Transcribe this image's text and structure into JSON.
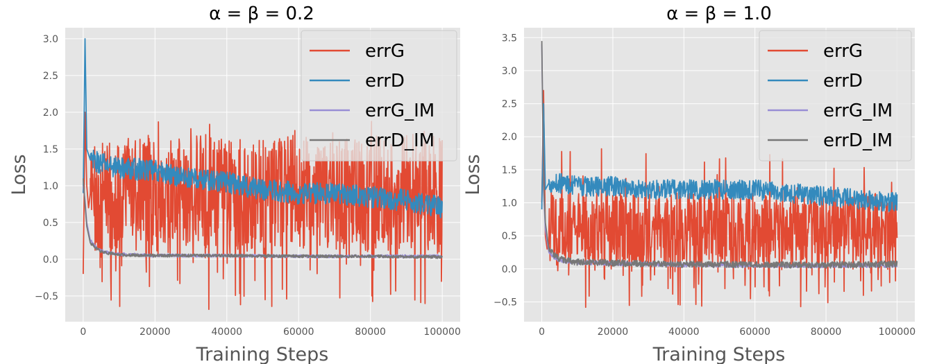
{
  "chart_data": [
    {
      "type": "line",
      "title": "α = β = 0.2",
      "xlabel": "Training Steps",
      "ylabel": "Loss",
      "xlim": [
        -5000,
        105000
      ],
      "ylim": [
        -0.85,
        3.15
      ],
      "xticks": [
        0,
        20000,
        40000,
        60000,
        80000,
        100000
      ],
      "yticks": [
        -0.5,
        0.0,
        0.5,
        1.0,
        1.5,
        2.0,
        2.5,
        3.0
      ],
      "ytick_labels": [
        "−0.5",
        "0.0",
        "0.5",
        "1.0",
        "1.5",
        "2.0",
        "2.5",
        "3.0"
      ],
      "grid": true,
      "legend": "top-right",
      "legend_entries": [
        "errG",
        "errD",
        "errG_IM",
        "errD_IM"
      ],
      "series": [
        {
          "name": "errG",
          "color": "#E24A33",
          "x": [
            0,
            500,
            1000,
            1500,
            2000,
            3000,
            5000,
            7500,
            10000,
            15000,
            20000,
            25000,
            30000,
            35000,
            40000,
            45000,
            50000,
            55000,
            60000,
            65000,
            70000,
            75000,
            80000,
            85000,
            90000,
            95000,
            100000
          ],
          "y": [
            -0.2,
            2.0,
            1.0,
            0.7,
            0.9,
            0.8,
            0.8,
            0.85,
            0.8,
            0.85,
            0.85,
            0.85,
            0.9,
            0.9,
            0.85,
            0.9,
            0.85,
            0.85,
            0.9,
            0.9,
            0.85,
            0.9,
            0.9,
            0.9,
            0.9,
            0.9,
            0.95
          ],
          "amplitude": 0.8,
          "upper_cap": 1.9,
          "lower_cap": -0.7
        },
        {
          "name": "errD",
          "color": "#348ABD",
          "x": [
            0,
            500,
            1000,
            2000,
            5000,
            10000,
            20000,
            30000,
            40000,
            50000,
            60000,
            70000,
            80000,
            90000,
            100000
          ],
          "y": [
            0.9,
            3.0,
            1.5,
            1.35,
            1.3,
            1.25,
            1.2,
            1.1,
            1.05,
            0.95,
            0.9,
            0.9,
            0.85,
            0.8,
            0.7
          ],
          "amplitude": 0.15
        },
        {
          "name": "errG_IM",
          "color": "#988ED5",
          "x": [
            0,
            500,
            1000,
            2000,
            4000,
            6000,
            10000,
            20000,
            40000,
            60000,
            80000,
            100000
          ],
          "y": [
            1.0,
            0.8,
            0.5,
            0.25,
            0.15,
            0.1,
            0.07,
            0.05,
            0.05,
            0.04,
            0.04,
            0.04
          ],
          "amplitude": 0.02
        },
        {
          "name": "errD_IM",
          "color": "#777777",
          "x": [
            0,
            500,
            1000,
            2000,
            4000,
            6000,
            10000,
            20000,
            40000,
            60000,
            80000,
            100000
          ],
          "y": [
            1.1,
            0.75,
            0.45,
            0.22,
            0.13,
            0.09,
            0.06,
            0.05,
            0.05,
            0.04,
            0.04,
            0.03
          ],
          "amplitude": 0.02
        }
      ]
    },
    {
      "type": "line",
      "title": "α = β = 1.0",
      "xlabel": "Training Steps",
      "ylabel": "Loss",
      "xlim": [
        -5000,
        105000
      ],
      "ylim": [
        -0.8,
        3.65
      ],
      "xticks": [
        0,
        20000,
        40000,
        60000,
        80000,
        100000
      ],
      "yticks": [
        -0.5,
        0.0,
        0.5,
        1.0,
        1.5,
        2.0,
        2.5,
        3.0,
        3.5
      ],
      "ytick_labels": [
        "−0.5",
        "0.0",
        "0.5",
        "1.0",
        "1.5",
        "2.0",
        "2.5",
        "3.0",
        "3.5"
      ],
      "grid": true,
      "legend": "top-right",
      "legend_entries": [
        "errG",
        "errD",
        "errG_IM",
        "errD_IM"
      ],
      "series": [
        {
          "name": "errG",
          "color": "#E24A33",
          "x": [
            0,
            500,
            1000,
            1500,
            2000,
            3000,
            5000,
            10000,
            20000,
            30000,
            40000,
            50000,
            60000,
            70000,
            80000,
            90000,
            100000
          ],
          "y": [
            1.0,
            2.7,
            0.5,
            0.3,
            0.4,
            0.6,
            0.6,
            0.6,
            0.6,
            0.6,
            0.6,
            0.6,
            0.6,
            0.6,
            0.6,
            0.6,
            0.6
          ],
          "amplitude": 0.55,
          "upper_cap": 1.85,
          "lower_cap": -0.6
        },
        {
          "name": "errD",
          "color": "#348ABD",
          "x": [
            0,
            500,
            1000,
            2000,
            5000,
            10000,
            20000,
            30000,
            40000,
            50000,
            60000,
            70000,
            80000,
            90000,
            100000
          ],
          "y": [
            0.9,
            2.5,
            1.2,
            1.3,
            1.3,
            1.25,
            1.25,
            1.2,
            1.2,
            1.2,
            1.2,
            1.15,
            1.1,
            1.05,
            1.0
          ],
          "amplitude": 0.15
        },
        {
          "name": "errG_IM",
          "color": "#988ED5",
          "x": [
            0,
            500,
            1000,
            2000,
            4000,
            6000,
            10000,
            20000,
            40000,
            60000,
            80000,
            100000
          ],
          "y": [
            3.4,
            1.2,
            0.6,
            0.25,
            0.15,
            0.12,
            0.1,
            0.08,
            0.06,
            0.05,
            0.05,
            0.05
          ],
          "amplitude": 0.03
        },
        {
          "name": "errD_IM",
          "color": "#777777",
          "x": [
            0,
            500,
            1000,
            2000,
            4000,
            6000,
            10000,
            20000,
            40000,
            60000,
            80000,
            100000
          ],
          "y": [
            3.45,
            1.3,
            0.7,
            0.3,
            0.18,
            0.13,
            0.1,
            0.09,
            0.07,
            0.06,
            0.06,
            0.07
          ],
          "amplitude": 0.05
        }
      ]
    }
  ]
}
